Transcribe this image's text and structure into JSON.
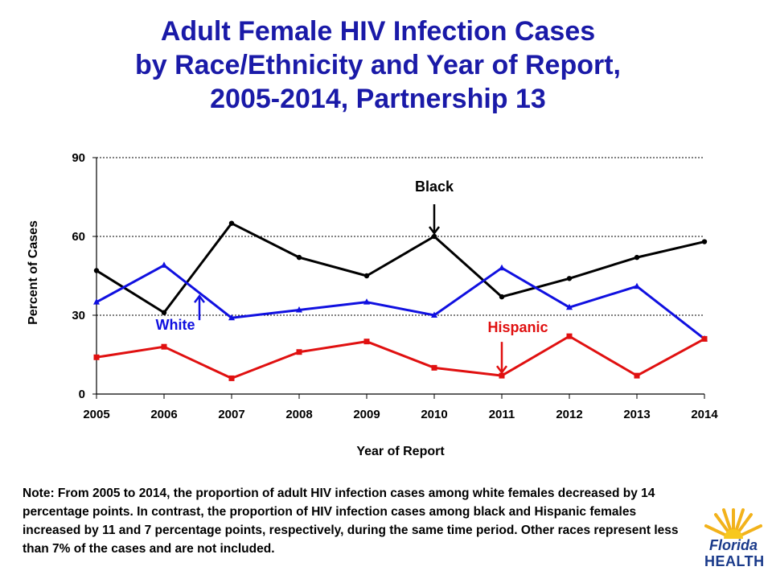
{
  "title": {
    "line1": "Adult Female HIV Infection Cases",
    "line2": "by Race/Ethnicity and Year of Report,",
    "line3": "2005-2014, Partnership 13"
  },
  "note": "Note:  From 2005 to 2014, the proportion of adult HIV infection cases among white females decreased by 14 percentage points.  In contrast, the proportion of HIV infection cases among black and Hispanic females increased by 11 and 7 percentage points, respectively, during the same time period.  Other races represent less than 7% of the cases and are not included.",
  "logo": {
    "word1": "Florida",
    "word2": "HEALTH"
  },
  "chart_data": {
    "type": "line",
    "title": "Adult Female HIV Infection Cases by Race/Ethnicity and Year of Report, 2005-2014, Partnership 13",
    "xlabel": "Year of Report",
    "ylabel": "Percent of Cases",
    "x": [
      "2005",
      "2006",
      "2007",
      "2008",
      "2009",
      "2010",
      "2011",
      "2012",
      "2013",
      "2014"
    ],
    "ylim": [
      0,
      90
    ],
    "yticks": [
      "0",
      "30",
      "60",
      "90"
    ],
    "grid": "horizontal dashed",
    "series": [
      {
        "name": "Black",
        "color": "#000000",
        "marker": "circle",
        "values": [
          47,
          31,
          65,
          52,
          45,
          60,
          37,
          44,
          52,
          58
        ]
      },
      {
        "name": "White",
        "color": "#1010e0",
        "marker": "triangle",
        "values": [
          35,
          49,
          29,
          32,
          35,
          30,
          48,
          33,
          41,
          21
        ]
      },
      {
        "name": "Hispanic",
        "color": "#e01010",
        "marker": "square",
        "values": [
          14,
          18,
          6,
          16,
          20,
          10,
          7,
          22,
          7,
          21
        ]
      }
    ],
    "annotations": [
      {
        "text": "Black",
        "series": "Black",
        "point_x": "2010",
        "arrow": "down"
      },
      {
        "text": "White",
        "series": "White",
        "point_x": "2006",
        "arrow": "up"
      },
      {
        "text": "Hispanic",
        "series": "Hispanic",
        "point_x": "2011",
        "arrow": "down"
      }
    ]
  }
}
